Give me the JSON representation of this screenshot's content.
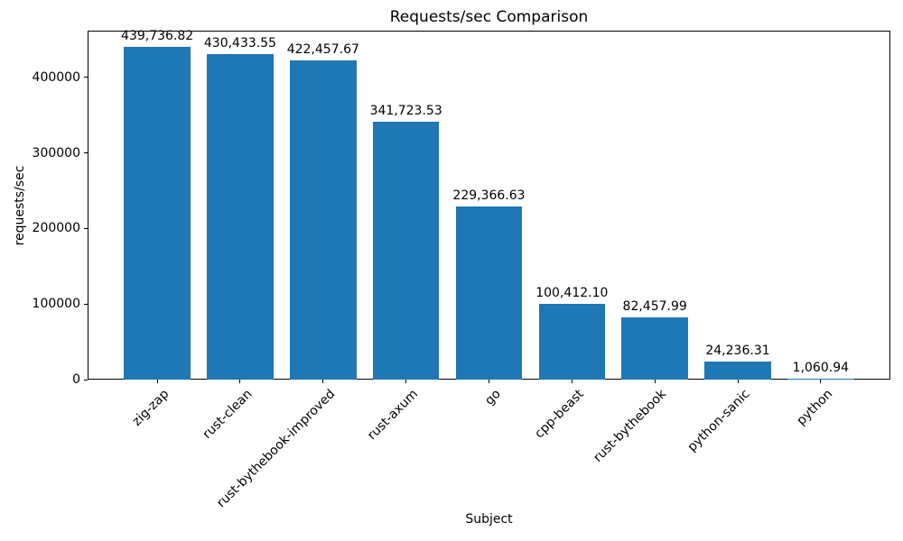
{
  "chart_data": {
    "type": "bar",
    "title": "Requests/sec Comparison",
    "xlabel": "Subject",
    "ylabel": "requests/sec",
    "categories": [
      "zig-zap",
      "rust-clean",
      "rust-bythebook-improved",
      "rust-axum",
      "go",
      "cpp-beast",
      "rust-bythebook",
      "python-sanic",
      "python"
    ],
    "values": [
      439736.82,
      430433.55,
      422457.67,
      341723.53,
      229366.63,
      100412.1,
      82457.99,
      24236.31,
      1060.94
    ],
    "bar_value_labels": [
      "439,736.82",
      "430,433.55",
      "422,457.67",
      "341,723.53",
      "229,366.63",
      "100,412.10",
      "82,457.99",
      "24,236.31",
      "1,060.94"
    ],
    "y_ticks": [
      0,
      100000,
      200000,
      300000,
      400000
    ],
    "y_tick_labels": [
      "0",
      "100000",
      "200000",
      "300000",
      "400000"
    ],
    "ylim": [
      0,
      461723.66
    ],
    "bar_color": "#1f77b4",
    "grid": false,
    "legend_position": "none"
  }
}
